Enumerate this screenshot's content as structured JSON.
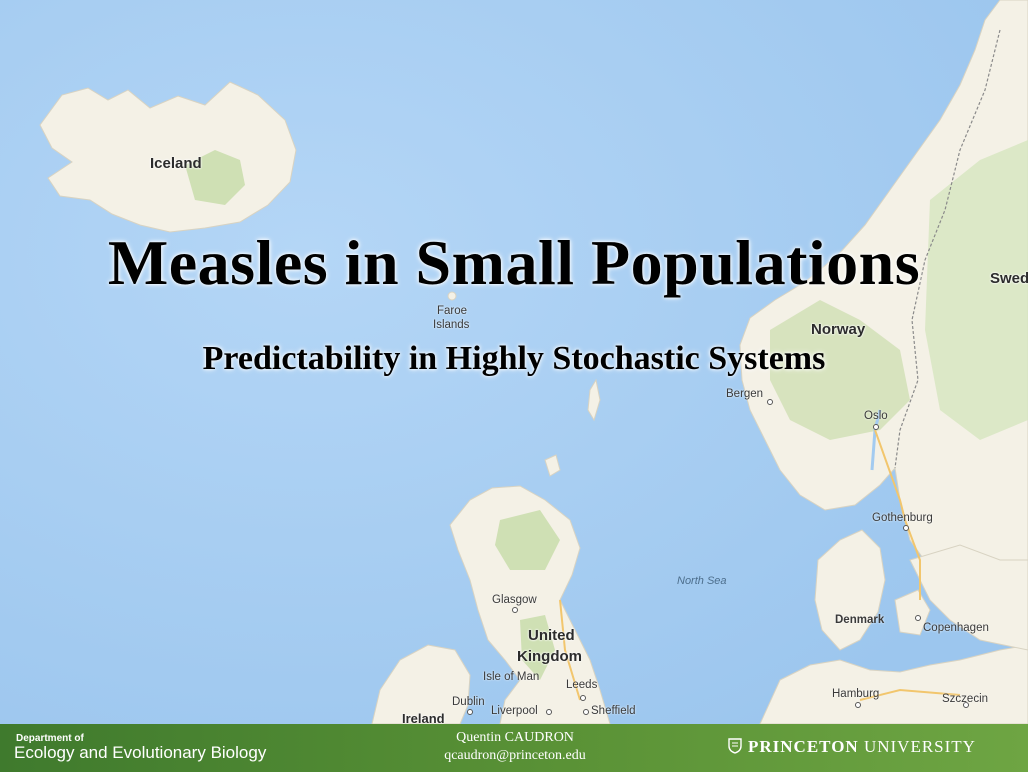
{
  "slide": {
    "title": "Measles in Small Populations",
    "subtitle": "Predictability in Highly Stochastic Systems"
  },
  "map": {
    "labels": {
      "iceland": "Iceland",
      "faroe_line1": "Faroe",
      "faroe_line2": "Islands",
      "norway": "Norway",
      "sweden": "Swed",
      "bergen": "Bergen",
      "oslo": "Oslo",
      "gothenburg": "Gothenburg",
      "north_sea": "North Sea",
      "glasgow": "Glasgow",
      "uk_line1": "United",
      "uk_line2": "Kingdom",
      "isle_of_man": "Isle of Man",
      "leeds": "Leeds",
      "dublin": "Dublin",
      "liverpool": "Liverpool",
      "sheffield": "Sheffield",
      "ireland": "Ireland",
      "denmark": "Denmark",
      "copenhagen": "Copenhagen",
      "hamburg": "Hamburg",
      "szczecin": "Szczecin"
    },
    "colors": {
      "sea": "#a3cbf0",
      "land": "#f4f1e6",
      "forest": "#cfe0b4",
      "road": "#f2c66d"
    }
  },
  "footer": {
    "department_prefix": "Department of",
    "department_name": "Ecology and Evolutionary Biology",
    "author": "Quentin CAUDRON",
    "email": "qcaudron@princeton.edu",
    "university_bold": "PRINCETON",
    "university_rest": "UNIVERSITY",
    "logo_icon": "princeton-shield-icon",
    "bar_color": "#4e8a32"
  }
}
